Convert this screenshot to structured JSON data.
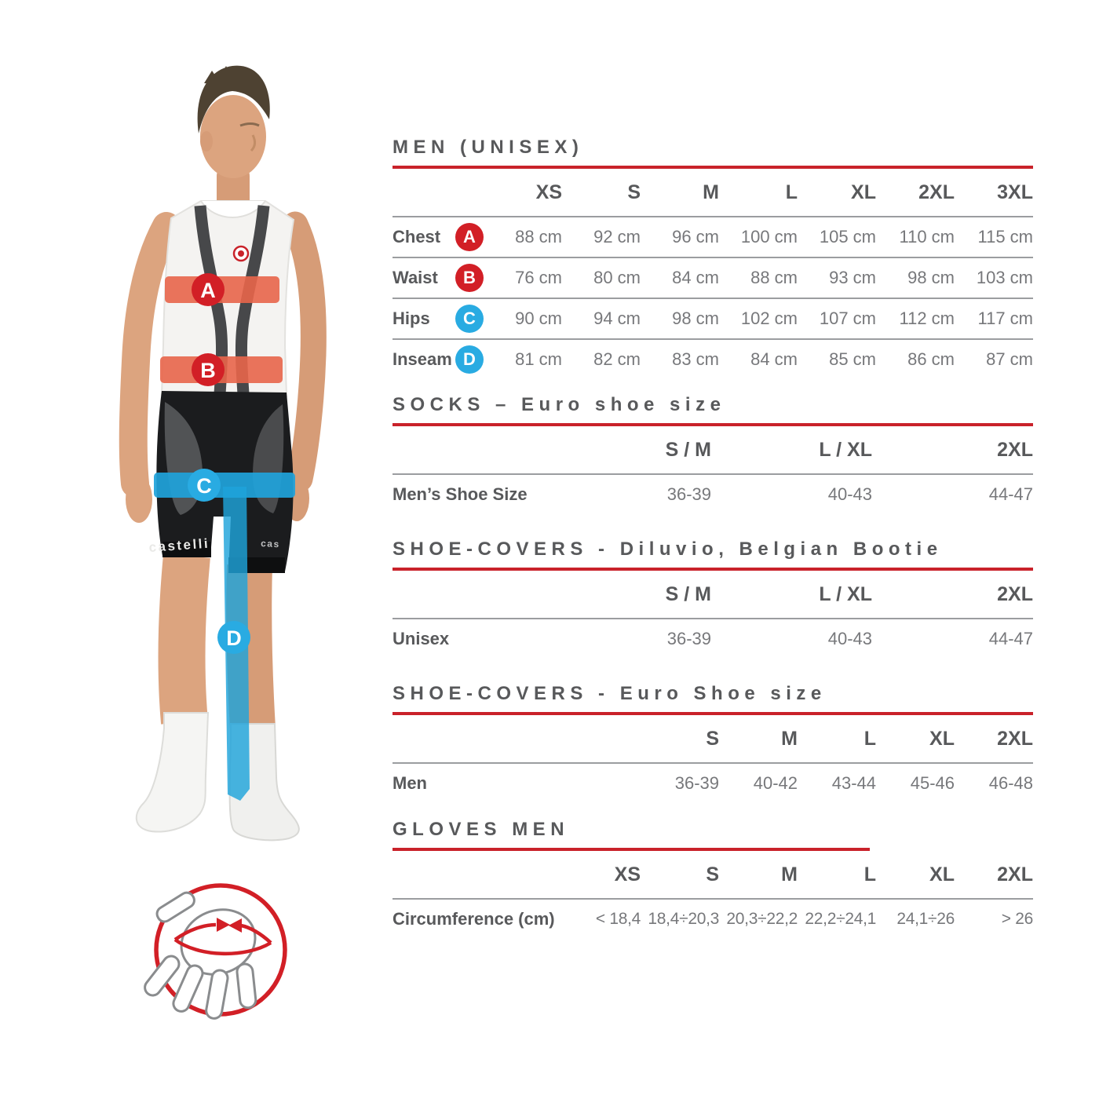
{
  "colors": {
    "accent_red": "#C9222A",
    "badge_red": "#D21F26",
    "badge_blue": "#29ABE2",
    "band_orange": "#E8654A",
    "band_blue": "#1FA3DB",
    "heading_gray": "#58595B",
    "value_gray": "#77787B",
    "separator_gray": "#9B9DA0"
  },
  "figure": {
    "shorts_brand_left": "castelli",
    "shorts_brand_right": "cas",
    "markers": [
      {
        "letter": "A",
        "color": "red",
        "meaning": "Chest"
      },
      {
        "letter": "B",
        "color": "red",
        "meaning": "Waist"
      },
      {
        "letter": "C",
        "color": "blue",
        "meaning": "Hips"
      },
      {
        "letter": "D",
        "color": "blue",
        "meaning": "Inseam"
      }
    ]
  },
  "tables": [
    {
      "title": "MEN (UNISEX)",
      "columns": [
        "XS",
        "S",
        "M",
        "L",
        "XL",
        "2XL",
        "3XL"
      ],
      "rows": [
        {
          "label": "Chest",
          "marker": "A",
          "marker_color": "red",
          "values": [
            "88 cm",
            "92 cm",
            "96 cm",
            "100 cm",
            "105 cm",
            "110 cm",
            "115 cm"
          ]
        },
        {
          "label": "Waist",
          "marker": "B",
          "marker_color": "red",
          "values": [
            "76 cm",
            "80 cm",
            "84 cm",
            "88 cm",
            "93 cm",
            "98 cm",
            "103 cm"
          ]
        },
        {
          "label": "Hips",
          "marker": "C",
          "marker_color": "blue",
          "values": [
            "90 cm",
            "94 cm",
            "98 cm",
            "102 cm",
            "107 cm",
            "112 cm",
            "117 cm"
          ]
        },
        {
          "label": "Inseam",
          "marker": "D",
          "marker_color": "blue",
          "values": [
            "81 cm",
            "82 cm",
            "83 cm",
            "84 cm",
            "85 cm",
            "86 cm",
            "87 cm"
          ]
        }
      ]
    },
    {
      "title": "SOCKS – Euro shoe size",
      "columns": [
        "S / M",
        "L / XL",
        "2XL"
      ],
      "rows": [
        {
          "label": "Men’s Shoe Size",
          "values": [
            "36-39",
            "40-43",
            "44-47"
          ]
        }
      ]
    },
    {
      "title": "SHOE-COVERS - Diluvio, Belgian Bootie",
      "columns": [
        "S / M",
        "L / XL",
        "2XL"
      ],
      "rows": [
        {
          "label": "Unisex",
          "values": [
            "36-39",
            "40-43",
            "44-47"
          ]
        }
      ]
    },
    {
      "title": "SHOE-COVERS - Euro Shoe size",
      "columns": [
        "S",
        "M",
        "L",
        "XL",
        "2XL"
      ],
      "rows": [
        {
          "label": "Men",
          "values": [
            "36-39",
            "40-42",
            "43-44",
            "45-46",
            "46-48"
          ]
        }
      ]
    },
    {
      "title": "GLOVES MEN",
      "columns": [
        "XS",
        "S",
        "M",
        "L",
        "XL",
        "2XL"
      ],
      "rows": [
        {
          "label": "Circumference (cm)",
          "values": [
            "< 18,4",
            "18,4÷20,3",
            "20,3÷22,2",
            "22,2÷24,1",
            "24,1÷26",
            "> 26"
          ]
        }
      ]
    }
  ]
}
